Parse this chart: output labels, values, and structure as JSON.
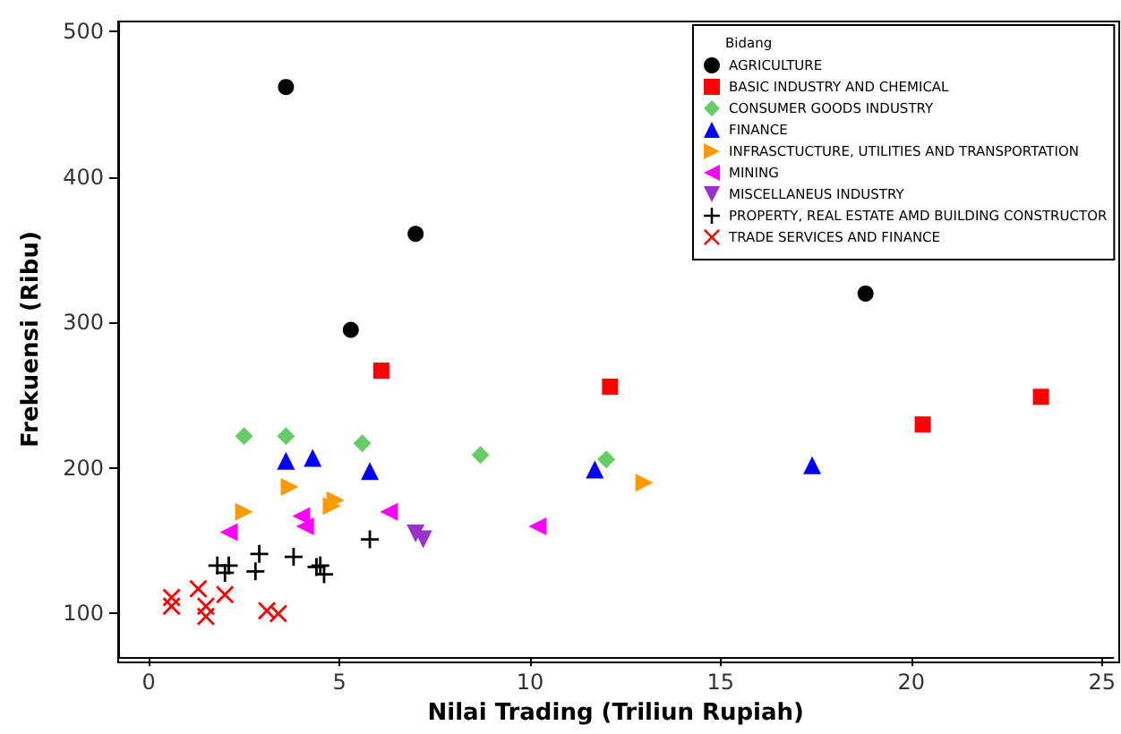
{
  "chart_data": {
    "type": "scatter",
    "xlabel": "Nilai Trading (Triliun Rupiah)",
    "ylabel": "Frekuensi (Ribu)",
    "legend_title": "Bidang",
    "legend": "top right",
    "grid": false,
    "xlim": [
      -0.8,
      25.3
    ],
    "xticks": [
      0,
      5,
      10,
      15,
      20,
      25
    ],
    "ylim": [
      70,
      507
    ],
    "yticks": [
      100,
      200,
      300,
      400,
      500
    ],
    "series": [
      {
        "name": "AGRICULTURE",
        "color": "#000000",
        "marker": "circle",
        "x": [
          3.6,
          7.0,
          5.3,
          18.8
        ],
        "values": [
          462,
          361,
          295,
          320
        ]
      },
      {
        "name": "BASIC INDUSTRY AND CHEMICAL",
        "color": "#ff0000",
        "marker": "square",
        "x": [
          6.1,
          12.1,
          20.3,
          23.4
        ],
        "values": [
          267,
          256,
          230,
          249
        ]
      },
      {
        "name": "CONSUMER GOODS INDUSTRY",
        "color": "#66cc66",
        "marker": "diamond",
        "x": [
          2.5,
          3.6,
          5.6,
          8.7,
          12.0
        ],
        "values": [
          222,
          222,
          217,
          209,
          206
        ]
      },
      {
        "name": "FINANCE",
        "color": "#0000ff",
        "marker": "triangle",
        "x": [
          3.6,
          4.3,
          5.8,
          11.7,
          17.4
        ],
        "values": [
          205,
          207,
          198,
          199,
          202
        ]
      },
      {
        "name": "INFRASCTUCTURE, UTILITIES AND TRANSPORTATION",
        "color": "#ff9900",
        "marker": "triangle-right",
        "x": [
          2.5,
          3.7,
          4.8,
          4.9,
          13.0
        ],
        "values": [
          170,
          187,
          174,
          178,
          190
        ]
      },
      {
        "name": "MINING",
        "color": "#ff00ff",
        "marker": "triangle-left",
        "x": [
          2.1,
          4.0,
          4.1,
          6.3,
          10.2
        ],
        "values": [
          156,
          167,
          160,
          170,
          160
        ]
      },
      {
        "name": "MISCELLANEUS INDUSTRY",
        "color": "#9933cc",
        "marker": "triangle-down",
        "x": [
          7.0,
          7.2
        ],
        "values": [
          155,
          151
        ]
      },
      {
        "name": "PROPERTY, REAL ESTATE AMD BUILDING CONSTRUCTOR",
        "color": "#000000",
        "marker": "plus",
        "x": [
          1.8,
          2.1,
          2.0,
          2.9,
          2.8,
          3.8,
          4.4,
          4.5,
          4.6,
          5.8
        ],
        "values": [
          133,
          133,
          128,
          141,
          129,
          139,
          132,
          133,
          127,
          151
        ]
      },
      {
        "name": "TRADE SERVICES AND FINANCE",
        "color": "#ff0000",
        "marker": "cross",
        "x": [
          0.6,
          0.6,
          1.3,
          1.5,
          1.5,
          2.0,
          3.1,
          3.4
        ],
        "values": [
          111,
          105,
          117,
          105,
          98,
          113,
          102,
          100
        ]
      }
    ]
  }
}
